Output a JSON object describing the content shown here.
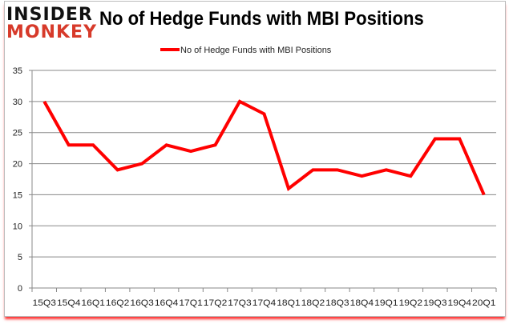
{
  "logo": {
    "line1": "INSIDER",
    "line2": "MONKEY"
  },
  "chart_data": {
    "type": "line",
    "title": "No of Hedge Funds with MBI Positions",
    "categories": [
      "15Q3",
      "15Q4",
      "16Q1",
      "16Q2",
      "16Q3",
      "16Q4",
      "17Q1",
      "17Q2",
      "17Q3",
      "17Q4",
      "18Q1",
      "18Q2",
      "18Q3",
      "18Q4",
      "19Q1",
      "19Q2",
      "19Q3",
      "19Q4",
      "20Q1"
    ],
    "series": [
      {
        "name": "No of Hedge Funds with MBI Positions",
        "color": "#ff0000",
        "values": [
          30,
          23,
          23,
          19,
          20,
          23,
          22,
          23,
          30,
          28,
          16,
          19,
          19,
          18,
          19,
          18,
          24,
          24,
          15
        ]
      }
    ],
    "ylim": [
      0,
      35
    ],
    "yticks": [
      0,
      5,
      10,
      15,
      20,
      25,
      30,
      35
    ],
    "grid": true,
    "legend": "top-center"
  }
}
